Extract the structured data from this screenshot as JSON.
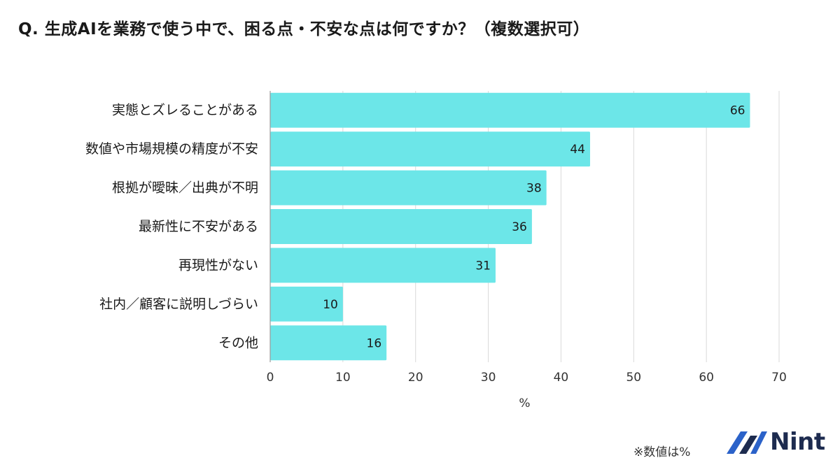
{
  "title": "Q. 生成AIを業務で使う中で、困る点・不安な点は何ですか？（複数選択可）",
  "footnote": "※数値は%",
  "logo": {
    "text": "Nint"
  },
  "colors": {
    "bar": "#6ce6e8",
    "grid": "#d9d9d9",
    "axis": "#9a9a9a",
    "brand": "#1d2b4f"
  },
  "chart_data": {
    "type": "bar",
    "orientation": "horizontal",
    "categories": [
      "実態とズレることがある",
      "数値や市場規模の精度が不安",
      "根拠が曖昧／出典が不明",
      "最新性に不安がある",
      "再現性がない",
      "社内／顧客に説明しづらい",
      "その他"
    ],
    "values": [
      66,
      44,
      38,
      36,
      31,
      10,
      16
    ],
    "xlabel": "%",
    "ylabel": "",
    "xlim": [
      0,
      70
    ],
    "xticks": [
      0,
      10,
      20,
      30,
      40,
      50,
      60,
      70
    ],
    "grid": true,
    "data_labels": true
  }
}
